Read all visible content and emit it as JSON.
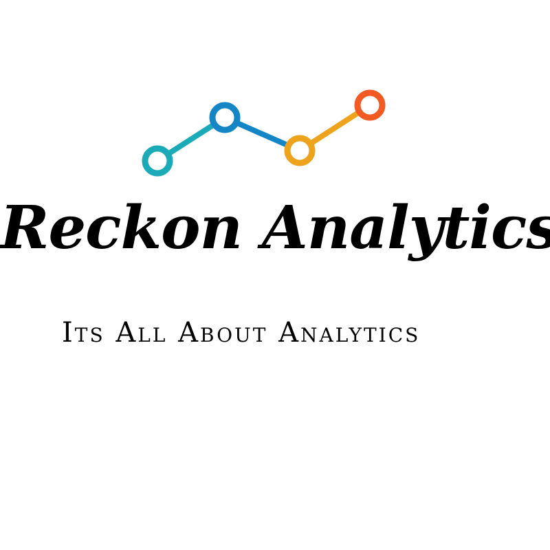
{
  "logo": {
    "icon_name": "line-chart-icon",
    "colors": {
      "teal": "#1aaab8",
      "blue": "#1486c6",
      "amber": "#eda31c",
      "orange": "#f15a22"
    }
  },
  "brand": {
    "name": "Reckon Analytics",
    "tagline": "Its All About Analytics"
  }
}
